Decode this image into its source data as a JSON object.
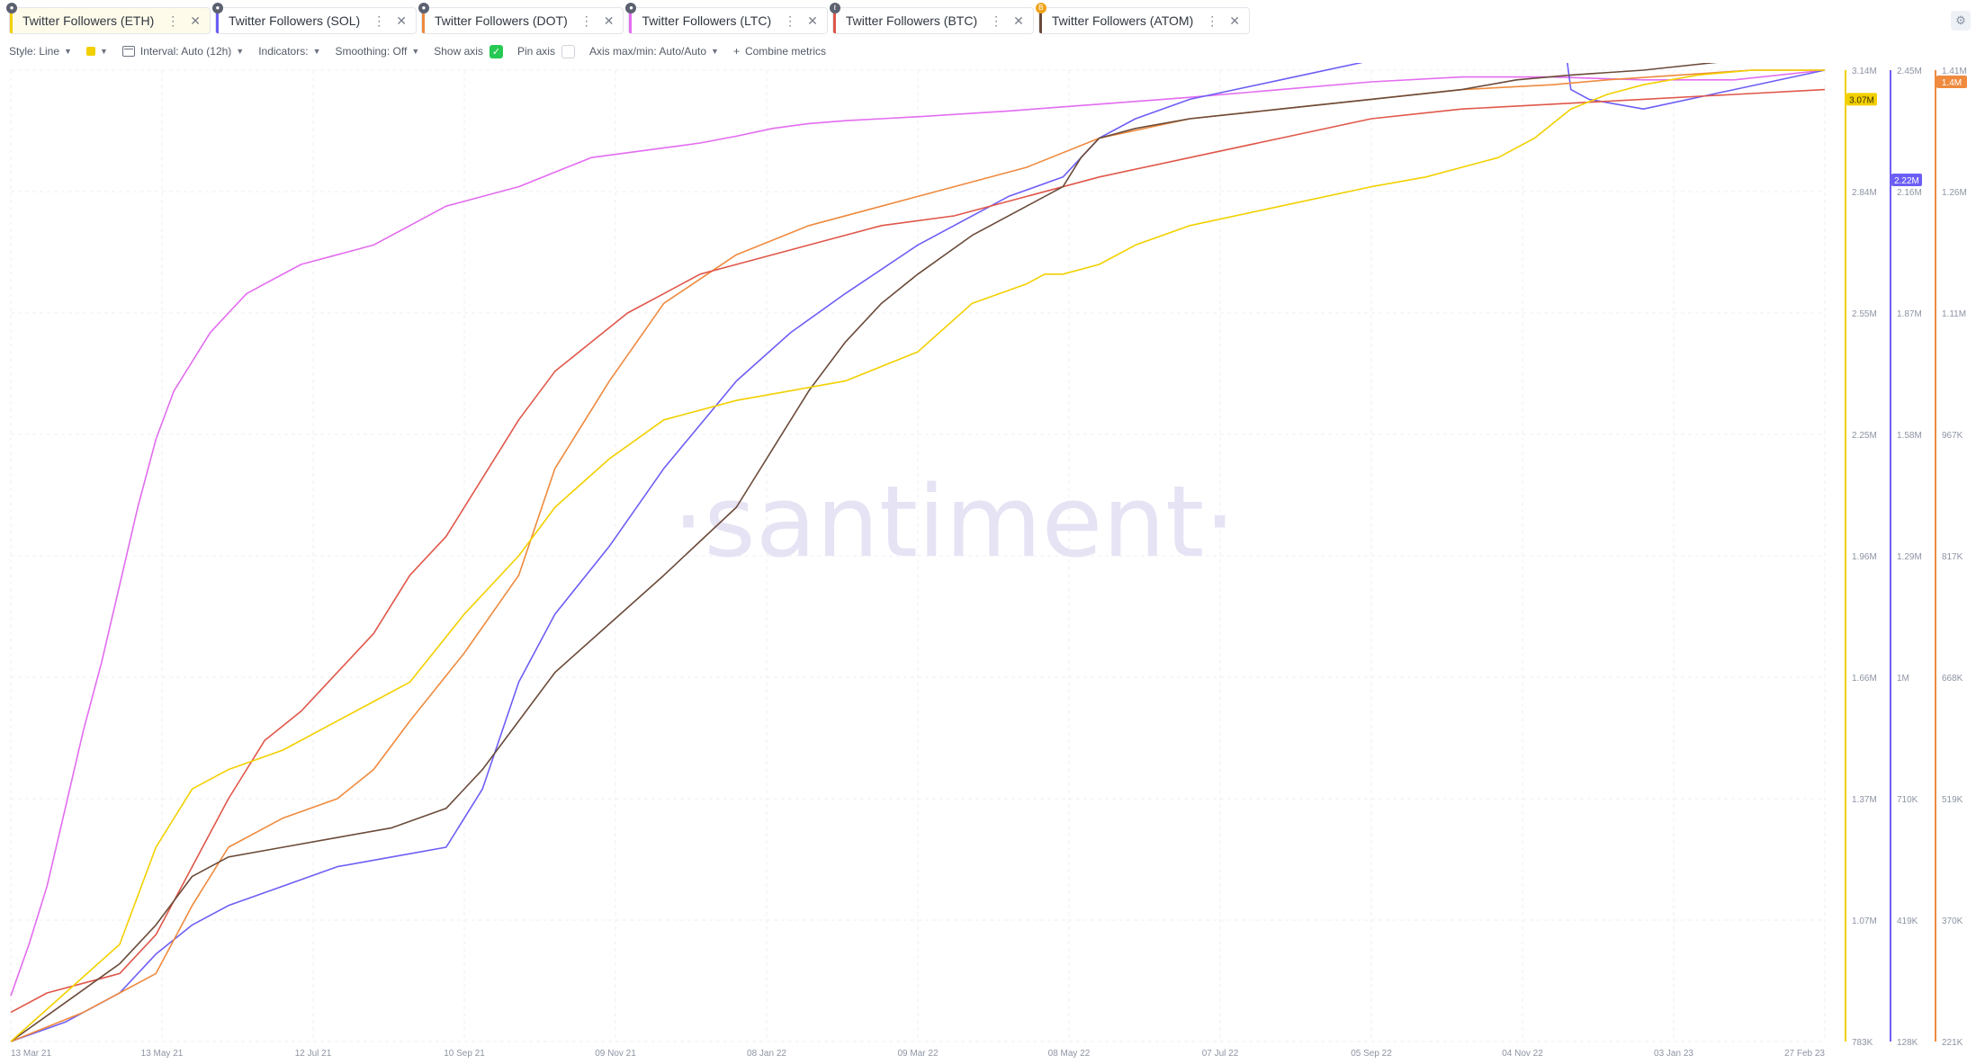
{
  "tabs": [
    {
      "label": "Twitter Followers (ETH)",
      "color": "#f2d000",
      "badge": "",
      "active": true
    },
    {
      "label": "Twitter Followers (SOL)",
      "color": "#6d5ef5",
      "badge": "",
      "active": false
    },
    {
      "label": "Twitter Followers (DOT)",
      "color": "#ef8a3e",
      "badge": "",
      "active": false
    },
    {
      "label": "Twitter Followers (LTC)",
      "color": "#e36cf0",
      "badge": "",
      "active": false
    },
    {
      "label": "Twitter Followers (BTC)",
      "color": "#e0574a",
      "badge": "B",
      "active": false
    },
    {
      "label": "Twitter Followers (ATOM)",
      "color": "#6b4b3a",
      "badge": "",
      "active": false
    }
  ],
  "toolbar": {
    "style": "Style: Line",
    "interval": "Interval: Auto (12h)",
    "indicators": "Indicators:",
    "smoothing": "Smoothing: Off",
    "show_axis": "Show axis",
    "pin_axis": "Pin axis",
    "axis_minmax": "Axis max/min: Auto/Auto",
    "combine": "Combine metrics",
    "plus": "+"
  },
  "chart_data": {
    "type": "line",
    "watermark": "·santiment·",
    "x_ticks": [
      "13 Mar 21",
      "13 May 21",
      "12 Jul 21",
      "10 Sep 21",
      "09 Nov 21",
      "08 Jan 22",
      "09 Mar 22",
      "08 May 22",
      "07 Jul 22",
      "05 Sep 22",
      "04 Nov 22",
      "03 Jan 23",
      "27 Feb 23"
    ],
    "axes": [
      {
        "name": "ETH",
        "color": "#f2d000",
        "ylim": [
          783000,
          3140000
        ],
        "ticks": [
          "3.14M",
          "2.84M",
          "2.55M",
          "2.25M",
          "1.96M",
          "1.66M",
          "1.37M",
          "1.07M",
          "783K"
        ],
        "last_value_label": "3.07M"
      },
      {
        "name": "SOL",
        "color": "#6d5ef5",
        "ylim": [
          128000,
          2450000
        ],
        "ticks": [
          "2.45M",
          "2.16M",
          "1.87M",
          "1.58M",
          "1.29M",
          "1M",
          "710K",
          "419K",
          "128K"
        ],
        "last_value_label": "2.22M"
      },
      {
        "name": "DOT",
        "color": "#ef8a3e",
        "ylim": [
          221000,
          1410000
        ],
        "ticks": [
          "1.41M",
          "1.26M",
          "1.11M",
          "967K",
          "817K",
          "668K",
          "519K",
          "370K",
          "221K"
        ],
        "last_value_label": "1.4M"
      }
    ],
    "series": [
      {
        "name": "Twitter Followers (LTC)",
        "color": "#e36cf0",
        "x": [
          0,
          0.01,
          0.02,
          0.03,
          0.04,
          0.05,
          0.06,
          0.07,
          0.08,
          0.09,
          0.1,
          0.11,
          0.12,
          0.13,
          0.14,
          0.16,
          0.18,
          0.2,
          0.22,
          0.24,
          0.26,
          0.28,
          0.3,
          0.32,
          0.34,
          0.36,
          0.38,
          0.4,
          0.42,
          0.44,
          0.46,
          0.48,
          0.5,
          0.55,
          0.6,
          0.65,
          0.7,
          0.75,
          0.8,
          0.85,
          0.9,
          0.95,
          1.0
        ],
        "y": [
          0.047,
          0.1,
          0.16,
          0.24,
          0.32,
          0.39,
          0.47,
          0.55,
          0.62,
          0.67,
          0.7,
          0.73,
          0.75,
          0.77,
          0.78,
          0.8,
          0.81,
          0.82,
          0.84,
          0.86,
          0.87,
          0.88,
          0.895,
          0.91,
          0.915,
          0.92,
          0.925,
          0.932,
          0.94,
          0.945,
          0.948,
          0.95,
          0.952,
          0.958,
          0.965,
          0.972,
          0.98,
          0.988,
          0.993,
          0.993,
          0.99,
          0.99,
          1.0
        ]
      },
      {
        "name": "Twitter Followers (SOL)",
        "color": "#6d5ef5",
        "x": [
          0,
          0.03,
          0.06,
          0.08,
          0.1,
          0.12,
          0.15,
          0.18,
          0.21,
          0.24,
          0.26,
          0.28,
          0.3,
          0.33,
          0.36,
          0.4,
          0.43,
          0.46,
          0.5,
          0.55,
          0.58,
          0.6,
          0.62,
          0.65,
          0.7,
          0.75,
          0.8,
          0.83,
          0.84,
          0.85,
          0.855,
          0.86,
          0.87,
          0.9,
          0.95,
          1.0
        ],
        "y": [
          0,
          0.02,
          0.05,
          0.09,
          0.12,
          0.14,
          0.16,
          0.18,
          0.19,
          0.2,
          0.26,
          0.37,
          0.44,
          0.51,
          0.59,
          0.68,
          0.73,
          0.77,
          0.82,
          0.87,
          0.89,
          0.93,
          0.95,
          0.97,
          0.99,
          1.01,
          1.04,
          1.07,
          1.1,
          1.18,
          1.05,
          0.98,
          0.97,
          0.96,
          0.98,
          1.0
        ]
      },
      {
        "name": "Twitter Followers (DOT)",
        "color": "#ef8a3e",
        "x": [
          0,
          0.04,
          0.08,
          0.1,
          0.12,
          0.15,
          0.18,
          0.2,
          0.22,
          0.25,
          0.28,
          0.3,
          0.33,
          0.36,
          0.4,
          0.44,
          0.48,
          0.52,
          0.56,
          0.6,
          0.65,
          0.7,
          0.75,
          0.8,
          0.85,
          0.88,
          0.92,
          0.96,
          1.0
        ],
        "y": [
          0,
          0.03,
          0.07,
          0.14,
          0.2,
          0.23,
          0.25,
          0.28,
          0.33,
          0.4,
          0.48,
          0.59,
          0.68,
          0.76,
          0.81,
          0.84,
          0.86,
          0.88,
          0.9,
          0.93,
          0.95,
          0.96,
          0.97,
          0.98,
          0.985,
          0.99,
          0.995,
          1.0,
          1.0
        ]
      },
      {
        "name": "Twitter Followers (BTC)",
        "color": "#e0574a",
        "x": [
          0,
          0.02,
          0.04,
          0.06,
          0.08,
          0.1,
          0.12,
          0.14,
          0.16,
          0.18,
          0.2,
          0.22,
          0.24,
          0.26,
          0.28,
          0.3,
          0.32,
          0.34,
          0.36,
          0.38,
          0.4,
          0.44,
          0.48,
          0.52,
          0.56,
          0.6,
          0.65,
          0.7,
          0.75,
          0.8,
          0.85,
          0.9,
          0.95,
          1.0
        ],
        "y": [
          0.03,
          0.05,
          0.06,
          0.07,
          0.11,
          0.18,
          0.25,
          0.31,
          0.34,
          0.38,
          0.42,
          0.48,
          0.52,
          0.58,
          0.64,
          0.69,
          0.72,
          0.75,
          0.77,
          0.79,
          0.8,
          0.82,
          0.84,
          0.85,
          0.87,
          0.89,
          0.91,
          0.93,
          0.95,
          0.96,
          0.965,
          0.97,
          0.975,
          0.98
        ]
      },
      {
        "name": "Twitter Followers (ATOM)",
        "color": "#6b4b3a",
        "x": [
          0,
          0.03,
          0.06,
          0.08,
          0.1,
          0.12,
          0.15,
          0.18,
          0.21,
          0.24,
          0.26,
          0.28,
          0.3,
          0.33,
          0.36,
          0.4,
          0.42,
          0.44,
          0.46,
          0.48,
          0.5,
          0.53,
          0.56,
          0.58,
          0.59,
          0.6,
          0.62,
          0.65,
          0.7,
          0.75,
          0.8,
          0.83,
          0.86,
          0.9,
          0.95,
          1.0
        ],
        "y": [
          0,
          0.04,
          0.08,
          0.12,
          0.17,
          0.19,
          0.2,
          0.21,
          0.22,
          0.24,
          0.28,
          0.33,
          0.38,
          0.43,
          0.48,
          0.55,
          0.61,
          0.67,
          0.72,
          0.76,
          0.79,
          0.83,
          0.86,
          0.88,
          0.91,
          0.93,
          0.94,
          0.95,
          0.96,
          0.97,
          0.98,
          0.99,
          0.995,
          1.0,
          1.01,
          1.02
        ]
      },
      {
        "name": "Twitter Followers (ETH)",
        "color": "#f2d000",
        "x": [
          0,
          0.03,
          0.06,
          0.08,
          0.1,
          0.12,
          0.15,
          0.18,
          0.2,
          0.22,
          0.25,
          0.28,
          0.3,
          0.33,
          0.36,
          0.4,
          0.43,
          0.46,
          0.5,
          0.53,
          0.56,
          0.57,
          0.58,
          0.6,
          0.62,
          0.65,
          0.7,
          0.75,
          0.78,
          0.8,
          0.82,
          0.84,
          0.86,
          0.88,
          0.9,
          0.93,
          0.96,
          1.0
        ],
        "y": [
          0,
          0.05,
          0.1,
          0.2,
          0.26,
          0.28,
          0.3,
          0.33,
          0.35,
          0.37,
          0.44,
          0.5,
          0.55,
          0.6,
          0.64,
          0.66,
          0.67,
          0.68,
          0.71,
          0.76,
          0.78,
          0.79,
          0.79,
          0.8,
          0.82,
          0.84,
          0.86,
          0.88,
          0.89,
          0.9,
          0.91,
          0.93,
          0.96,
          0.975,
          0.985,
          0.995,
          1.0,
          1.0
        ]
      }
    ]
  }
}
